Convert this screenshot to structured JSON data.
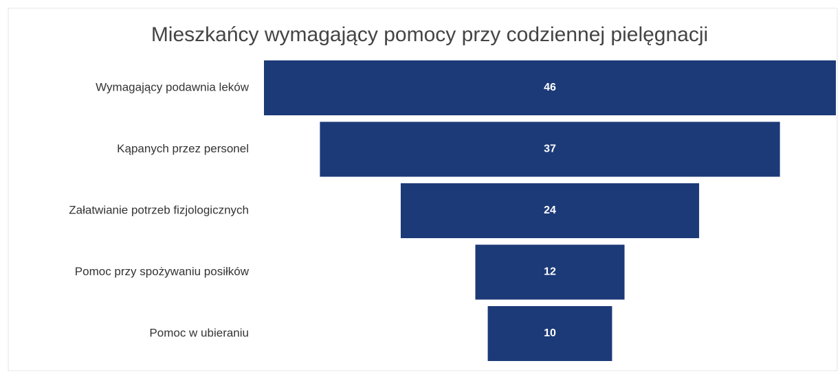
{
  "chart_data": {
    "type": "funnel",
    "title": "Mieszkańcy wymagający pomocy przy codziennej pielęgnacji",
    "categories": [
      "Wymagający podawnia leków",
      "Kąpanych przez personel",
      "Załatwianie potrzeb fizjologicznych",
      "Pomoc przy spożywaniu posiłków",
      "Pomoc w ubieraniu"
    ],
    "values": [
      46,
      37,
      24,
      12,
      10
    ],
    "color": "#1c3a78"
  }
}
